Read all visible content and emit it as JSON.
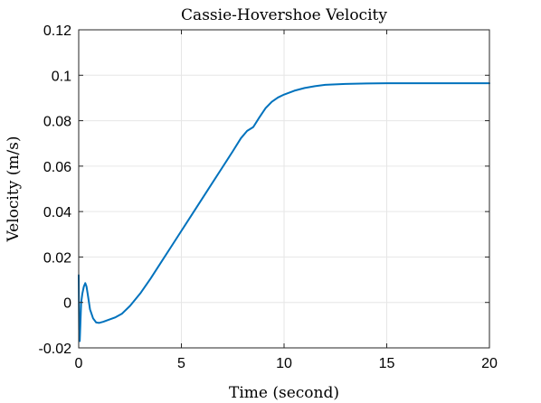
{
  "chart_data": {
    "type": "line",
    "title": "Cassie-Hovershoe Velocity",
    "xlabel": "Time (second)",
    "ylabel": "Velocity (m/s)",
    "xlim": [
      0,
      20
    ],
    "ylim": [
      -0.02,
      0.12
    ],
    "xticks": [
      0,
      5,
      10,
      15,
      20
    ],
    "xtick_labels": [
      "0",
      "5",
      "10",
      "15",
      "20"
    ],
    "yticks": [
      -0.02,
      0,
      0.02,
      0.04,
      0.06,
      0.08,
      0.1,
      0.12
    ],
    "ytick_labels": [
      "-0.02",
      "0",
      "0.02",
      "0.04",
      "0.06",
      "0.08",
      "0.1",
      "0.12"
    ],
    "grid": true,
    "legend": "none",
    "series": [
      {
        "color": "#0072bd",
        "x": [
          0,
          0.02,
          0.05,
          0.08,
          0.12,
          0.18,
          0.25,
          0.32,
          0.38,
          0.45,
          0.55,
          0.7,
          0.85,
          1.0,
          1.2,
          1.5,
          1.8,
          2.1,
          2.5,
          3.0,
          3.5,
          4.0,
          4.5,
          5.0,
          5.5,
          6.0,
          6.5,
          7.0,
          7.5,
          7.9,
          8.2,
          8.5,
          8.8,
          9.1,
          9.4,
          9.7,
          10.0,
          10.5,
          11.0,
          11.5,
          12.0,
          13.0,
          14.0,
          15.0,
          16.0,
          17.0,
          18.0,
          19.0,
          20.0
        ],
        "y": [
          0.012,
          -0.012,
          -0.017,
          -0.01,
          0.0,
          0.004,
          0.007,
          0.0085,
          0.007,
          0.003,
          -0.003,
          -0.007,
          -0.0088,
          -0.009,
          -0.0085,
          -0.0075,
          -0.0065,
          -0.005,
          -0.0015,
          0.004,
          0.0105,
          0.0175,
          0.0245,
          0.0315,
          0.0385,
          0.0455,
          0.0525,
          0.0595,
          0.0665,
          0.0723,
          0.0755,
          0.0772,
          0.0815,
          0.0855,
          0.0883,
          0.0902,
          0.0915,
          0.0932,
          0.0944,
          0.0952,
          0.0958,
          0.0962,
          0.0964,
          0.0965,
          0.0965,
          0.0965,
          0.0965,
          0.0965,
          0.0965
        ]
      }
    ]
  }
}
